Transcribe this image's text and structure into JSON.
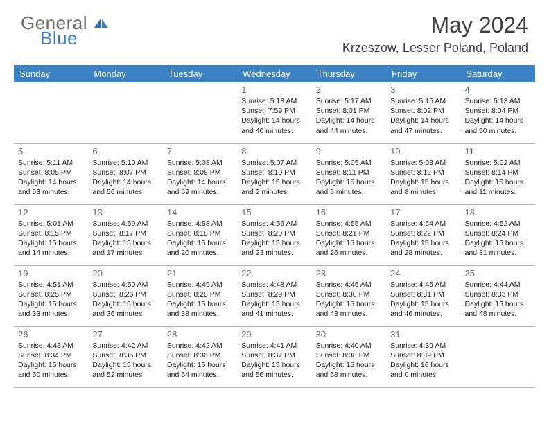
{
  "logo": {
    "line1": "General",
    "line2": "Blue"
  },
  "title": "May 2024",
  "location": "Krzeszow, Lesser Poland, Poland",
  "colors": {
    "header_bg": "#3b82c4",
    "header_fg": "#ffffff",
    "border": "#9db7cc",
    "daynum": "#6d6d6d",
    "text": "#232323",
    "logo_gray": "#6a6a6a",
    "logo_blue": "#3c7cc0"
  },
  "weekdays": [
    "Sunday",
    "Monday",
    "Tuesday",
    "Wednesday",
    "Thursday",
    "Friday",
    "Saturday"
  ],
  "weeks": [
    [
      null,
      null,
      null,
      {
        "n": "1",
        "sr": "5:18 AM",
        "ss": "7:59 PM",
        "dl": "14 hours and 40 minutes."
      },
      {
        "n": "2",
        "sr": "5:17 AM",
        "ss": "8:01 PM",
        "dl": "14 hours and 44 minutes."
      },
      {
        "n": "3",
        "sr": "5:15 AM",
        "ss": "8:02 PM",
        "dl": "14 hours and 47 minutes."
      },
      {
        "n": "4",
        "sr": "5:13 AM",
        "ss": "8:04 PM",
        "dl": "14 hours and 50 minutes."
      }
    ],
    [
      {
        "n": "5",
        "sr": "5:11 AM",
        "ss": "8:05 PM",
        "dl": "14 hours and 53 minutes."
      },
      {
        "n": "6",
        "sr": "5:10 AM",
        "ss": "8:07 PM",
        "dl": "14 hours and 56 minutes."
      },
      {
        "n": "7",
        "sr": "5:08 AM",
        "ss": "8:08 PM",
        "dl": "14 hours and 59 minutes."
      },
      {
        "n": "8",
        "sr": "5:07 AM",
        "ss": "8:10 PM",
        "dl": "15 hours and 2 minutes."
      },
      {
        "n": "9",
        "sr": "5:05 AM",
        "ss": "8:11 PM",
        "dl": "15 hours and 5 minutes."
      },
      {
        "n": "10",
        "sr": "5:03 AM",
        "ss": "8:12 PM",
        "dl": "15 hours and 8 minutes."
      },
      {
        "n": "11",
        "sr": "5:02 AM",
        "ss": "8:14 PM",
        "dl": "15 hours and 11 minutes."
      }
    ],
    [
      {
        "n": "12",
        "sr": "5:01 AM",
        "ss": "8:15 PM",
        "dl": "15 hours and 14 minutes."
      },
      {
        "n": "13",
        "sr": "4:59 AM",
        "ss": "8:17 PM",
        "dl": "15 hours and 17 minutes."
      },
      {
        "n": "14",
        "sr": "4:58 AM",
        "ss": "8:18 PM",
        "dl": "15 hours and 20 minutes."
      },
      {
        "n": "15",
        "sr": "4:56 AM",
        "ss": "8:20 PM",
        "dl": "15 hours and 23 minutes."
      },
      {
        "n": "16",
        "sr": "4:55 AM",
        "ss": "8:21 PM",
        "dl": "15 hours and 26 minutes."
      },
      {
        "n": "17",
        "sr": "4:54 AM",
        "ss": "8:22 PM",
        "dl": "15 hours and 28 minutes."
      },
      {
        "n": "18",
        "sr": "4:52 AM",
        "ss": "8:24 PM",
        "dl": "15 hours and 31 minutes."
      }
    ],
    [
      {
        "n": "19",
        "sr": "4:51 AM",
        "ss": "8:25 PM",
        "dl": "15 hours and 33 minutes."
      },
      {
        "n": "20",
        "sr": "4:50 AM",
        "ss": "8:26 PM",
        "dl": "15 hours and 36 minutes."
      },
      {
        "n": "21",
        "sr": "4:49 AM",
        "ss": "8:28 PM",
        "dl": "15 hours and 38 minutes."
      },
      {
        "n": "22",
        "sr": "4:48 AM",
        "ss": "8:29 PM",
        "dl": "15 hours and 41 minutes."
      },
      {
        "n": "23",
        "sr": "4:46 AM",
        "ss": "8:30 PM",
        "dl": "15 hours and 43 minutes."
      },
      {
        "n": "24",
        "sr": "4:45 AM",
        "ss": "8:31 PM",
        "dl": "15 hours and 46 minutes."
      },
      {
        "n": "25",
        "sr": "4:44 AM",
        "ss": "8:33 PM",
        "dl": "15 hours and 48 minutes."
      }
    ],
    [
      {
        "n": "26",
        "sr": "4:43 AM",
        "ss": "8:34 PM",
        "dl": "15 hours and 50 minutes."
      },
      {
        "n": "27",
        "sr": "4:42 AM",
        "ss": "8:35 PM",
        "dl": "15 hours and 52 minutes."
      },
      {
        "n": "28",
        "sr": "4:42 AM",
        "ss": "8:36 PM",
        "dl": "15 hours and 54 minutes."
      },
      {
        "n": "29",
        "sr": "4:41 AM",
        "ss": "8:37 PM",
        "dl": "15 hours and 56 minutes."
      },
      {
        "n": "30",
        "sr": "4:40 AM",
        "ss": "8:38 PM",
        "dl": "15 hours and 58 minutes."
      },
      {
        "n": "31",
        "sr": "4:39 AM",
        "ss": "8:39 PM",
        "dl": "16 hours and 0 minutes."
      },
      null
    ]
  ],
  "labels": {
    "sunrise": "Sunrise:",
    "sunset": "Sunset:",
    "daylight": "Daylight:"
  }
}
